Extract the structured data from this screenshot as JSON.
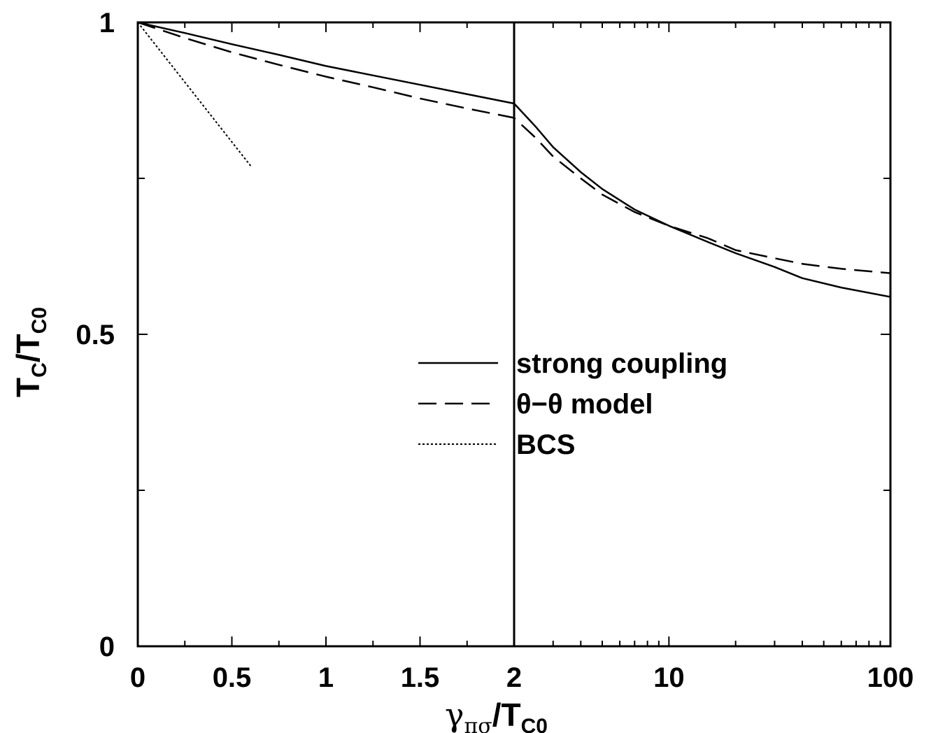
{
  "chart_data": {
    "type": "line",
    "xlabel": {
      "main": "γ",
      "sub": "πσ",
      "sep": "/T",
      "sub2": "C0"
    },
    "ylabel": {
      "main": "T",
      "sub": "C",
      "sep": "/T",
      "sub2": "C0"
    },
    "x_scale": "linear 0–2, log 2–100",
    "xlim": [
      0,
      100
    ],
    "ylim": [
      0,
      1
    ],
    "x_break": 2,
    "x_tick_labels": [
      "0",
      "0.5",
      "1",
      "1.5",
      "2",
      "10",
      "100"
    ],
    "y_tick_labels": [
      "0",
      "0.5",
      "1"
    ],
    "legend_position": "center-right",
    "series": [
      {
        "name": "strong coupling",
        "style": "solid",
        "points": [
          [
            0,
            1.0
          ],
          [
            0.25,
            0.983
          ],
          [
            0.5,
            0.965
          ],
          [
            0.75,
            0.948
          ],
          [
            1.0,
            0.93
          ],
          [
            1.25,
            0.915
          ],
          [
            1.5,
            0.9
          ],
          [
            1.75,
            0.885
          ],
          [
            2.0,
            0.87
          ],
          [
            2.5,
            0.833
          ],
          [
            3,
            0.8
          ],
          [
            4,
            0.76
          ],
          [
            5,
            0.733
          ],
          [
            7,
            0.7
          ],
          [
            10,
            0.674
          ],
          [
            15,
            0.648
          ],
          [
            20,
            0.63
          ],
          [
            30,
            0.608
          ],
          [
            40,
            0.59
          ],
          [
            60,
            0.575
          ],
          [
            100,
            0.56
          ]
        ]
      },
      {
        "name": "θ−θ model",
        "style": "dashed",
        "points": [
          [
            0,
            1.0
          ],
          [
            0.25,
            0.975
          ],
          [
            0.5,
            0.952
          ],
          [
            0.75,
            0.932
          ],
          [
            1.0,
            0.913
          ],
          [
            1.25,
            0.896
          ],
          [
            1.5,
            0.878
          ],
          [
            1.75,
            0.862
          ],
          [
            2.0,
            0.847
          ],
          [
            2.5,
            0.815
          ],
          [
            3,
            0.785
          ],
          [
            4,
            0.75
          ],
          [
            5,
            0.724
          ],
          [
            7,
            0.696
          ],
          [
            10,
            0.674
          ],
          [
            15,
            0.654
          ],
          [
            20,
            0.635
          ],
          [
            30,
            0.622
          ],
          [
            40,
            0.613
          ],
          [
            60,
            0.605
          ],
          [
            100,
            0.598
          ]
        ]
      },
      {
        "name": "BCS",
        "style": "dotted",
        "points": [
          [
            0,
            1.0
          ],
          [
            0.6,
            0.77
          ]
        ]
      }
    ]
  }
}
